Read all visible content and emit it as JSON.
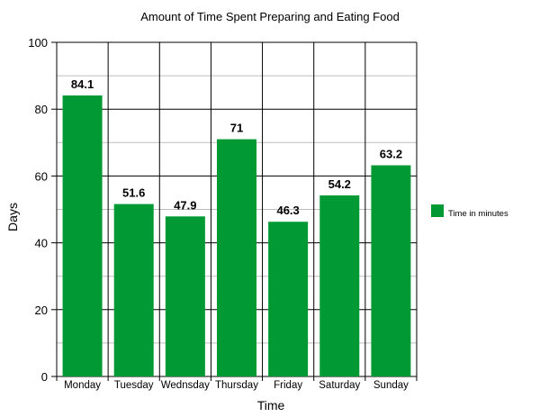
{
  "chart_data": {
    "type": "bar",
    "title": "Amount of Time Spent Preparing and Eating Food",
    "xlabel": "Time",
    "ylabel": "Days",
    "categories": [
      "Monday",
      "Tuesday",
      "Wednsday",
      "Thursday",
      "Friday",
      "Saturday",
      "Sunday"
    ],
    "series": [
      {
        "name": "Time in minutes",
        "values": [
          84.1,
          51.6,
          47.9,
          71,
          46.3,
          54.2,
          63.2
        ],
        "color": "#009933"
      }
    ],
    "value_labels": [
      "84.1",
      "51.6",
      "47.9",
      "71",
      "46.3",
      "54.2",
      "63.2"
    ],
    "ylim": [
      0,
      100
    ],
    "yticks": [
      0,
      20,
      40,
      60,
      80,
      100
    ],
    "grid": true,
    "legend_position": "right"
  }
}
